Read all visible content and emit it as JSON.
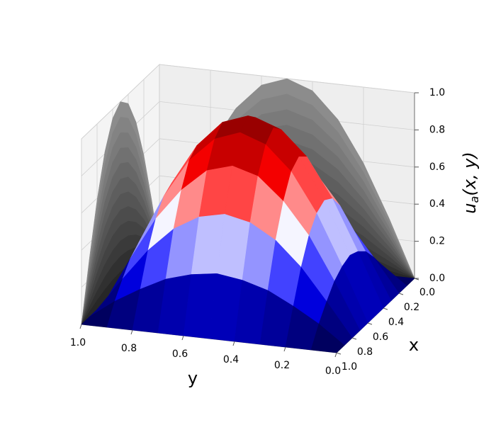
{
  "chart_data": {
    "type": "surface",
    "x": [
      0,
      0.1,
      0.2,
      0.3,
      0.4,
      0.5,
      0.6,
      0.7,
      0.8,
      0.9,
      1
    ],
    "y": [
      0,
      0.1,
      0.2,
      0.3,
      0.4,
      0.5,
      0.6,
      0.7,
      0.8,
      0.9,
      1
    ],
    "z": [
      [
        0,
        0,
        0,
        0,
        0,
        0,
        0,
        0,
        0,
        0,
        0
      ],
      [
        0,
        0.1,
        0.18,
        0.25,
        0.29,
        0.31,
        0.29,
        0.25,
        0.18,
        0.1,
        0
      ],
      [
        0,
        0.18,
        0.35,
        0.48,
        0.56,
        0.59,
        0.56,
        0.48,
        0.35,
        0.18,
        0
      ],
      [
        0,
        0.25,
        0.48,
        0.65,
        0.77,
        0.81,
        0.77,
        0.65,
        0.48,
        0.25,
        0
      ],
      [
        0,
        0.29,
        0.56,
        0.77,
        0.9,
        0.95,
        0.9,
        0.77,
        0.56,
        0.29,
        0
      ],
      [
        0,
        0.31,
        0.59,
        0.81,
        0.95,
        1,
        0.95,
        0.81,
        0.59,
        0.31,
        0
      ],
      [
        0,
        0.29,
        0.56,
        0.77,
        0.9,
        0.95,
        0.9,
        0.77,
        0.56,
        0.29,
        0
      ],
      [
        0,
        0.25,
        0.48,
        0.65,
        0.77,
        0.81,
        0.77,
        0.65,
        0.48,
        0.25,
        0
      ],
      [
        0,
        0.18,
        0.35,
        0.48,
        0.56,
        0.59,
        0.56,
        0.48,
        0.35,
        0.18,
        0
      ],
      [
        0,
        0.1,
        0.18,
        0.25,
        0.29,
        0.31,
        0.29,
        0.25,
        0.18,
        0.1,
        0
      ],
      [
        0,
        0,
        0,
        0,
        0,
        0,
        0,
        0,
        0,
        0,
        0
      ]
    ],
    "colormap": "seismic",
    "projection_colormap": "gray",
    "xlabel": "x",
    "ylabel": "y",
    "zlabel": {
      "base": "u",
      "sub": "a",
      "args": "(x, y)"
    },
    "xlim": [
      0,
      1
    ],
    "ylim": [
      0,
      1
    ],
    "zlim": [
      0,
      1
    ],
    "xticks": [
      {
        "value": 0,
        "label": "0.0"
      },
      0.2,
      0.4,
      0.6,
      0.8,
      {
        "value": 1,
        "label": "1.0"
      }
    ],
    "yticks": [
      {
        "value": 0,
        "label": "0.0"
      },
      0.2,
      0.4,
      0.6,
      0.8,
      {
        "value": 1,
        "label": "1.0"
      }
    ],
    "zticks": [
      {
        "value": 0,
        "label": "0.0"
      },
      0.2,
      0.4,
      0.6,
      0.8,
      {
        "value": 1,
        "label": "1.0"
      }
    ],
    "grid": true
  }
}
